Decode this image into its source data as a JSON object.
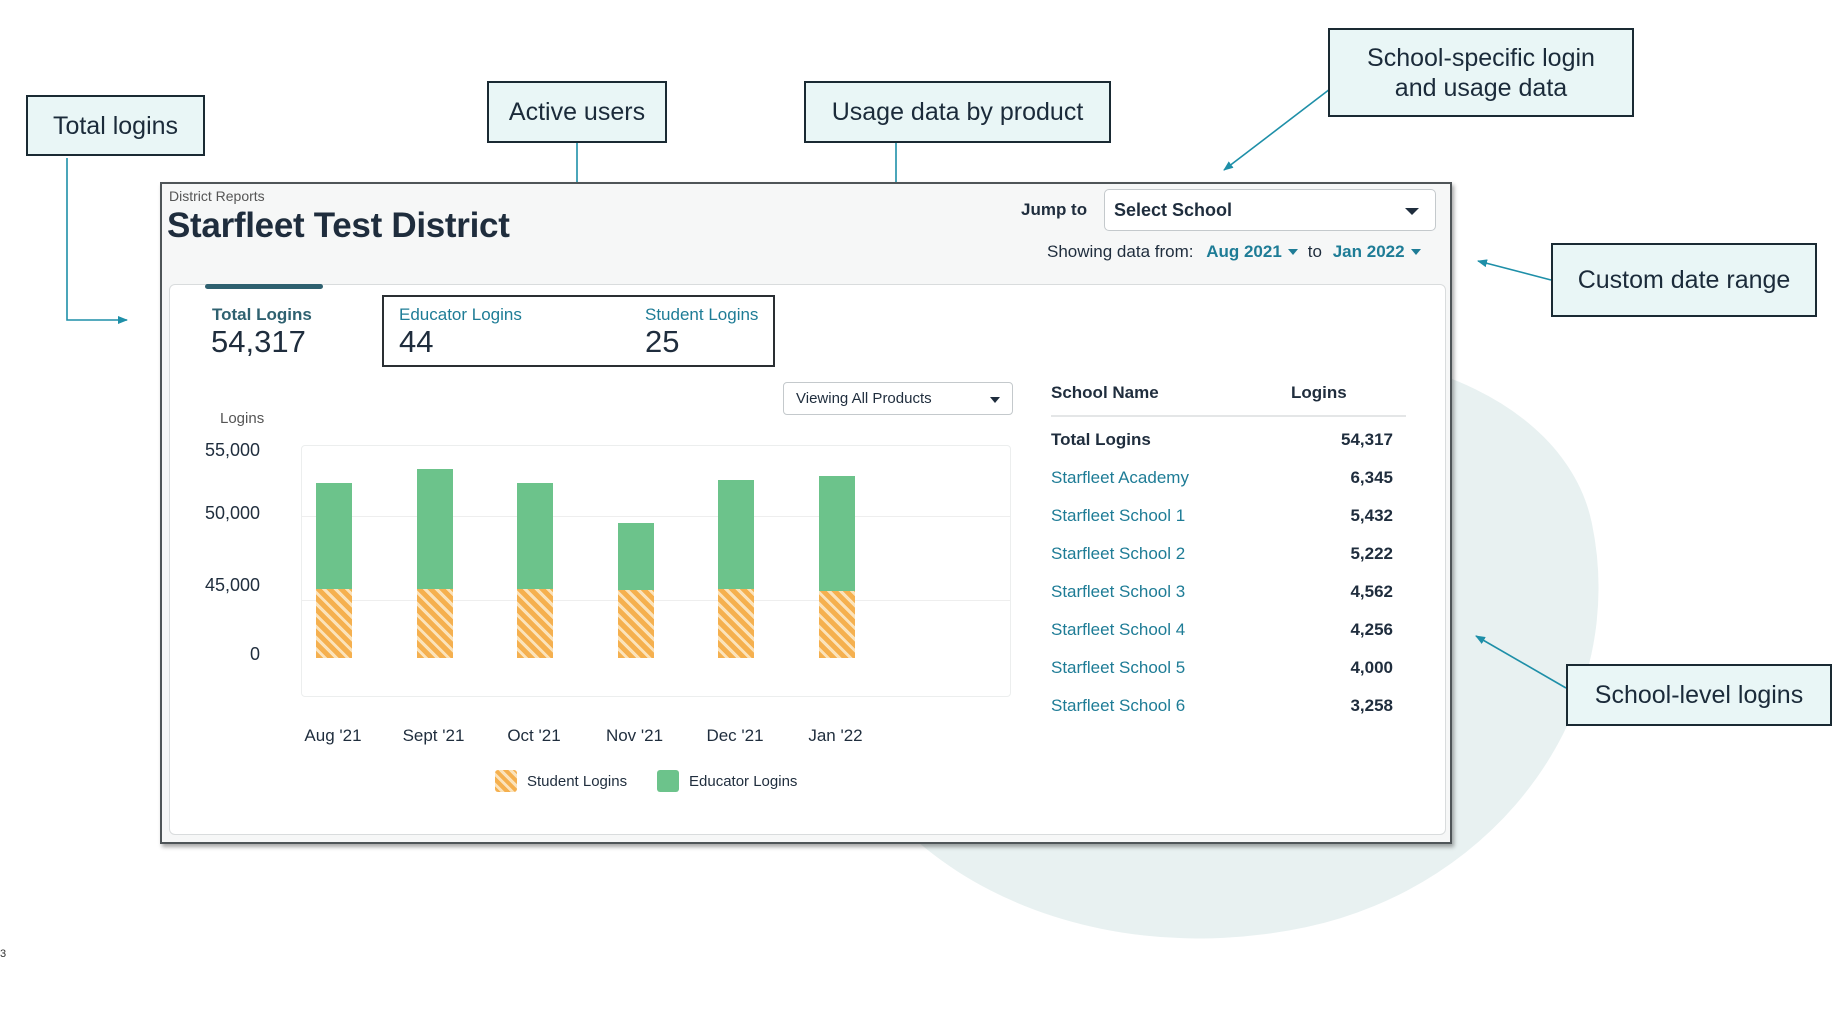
{
  "callouts": {
    "total_logins": "Total logins",
    "active_users": "Active users",
    "usage_by_product": "Usage data by product",
    "school_specific_line1": "School-specific login",
    "school_specific_line2": "and usage data",
    "custom_date_range": "Custom date range",
    "school_level_logins": "School-level logins"
  },
  "header": {
    "breadcrumb": "District Reports",
    "title": "Starfleet Test District",
    "jump_to_label": "Jump to",
    "school_select_value": "Select School",
    "date_range": {
      "prefix": "Showing data from:",
      "from": "Aug 2021",
      "separator": "to",
      "to": "Jan 2022"
    }
  },
  "summary": {
    "total_logins_label": "Total Logins",
    "total_logins_value": "54,317",
    "educator_logins_label": "Educator Logins",
    "educator_logins_value": "44",
    "student_logins_label": "Student Logins",
    "student_logins_value": "25"
  },
  "product_filter": {
    "selected": "Viewing All Products"
  },
  "chart_data": {
    "type": "bar",
    "stacked": true,
    "ylabel": "Logins",
    "y_ticks": [
      "55,000",
      "50,000",
      "45,000",
      "0"
    ],
    "categories": [
      "Aug '21",
      "Sept '21",
      "Oct '21",
      "Nov '21",
      "Dec '21",
      "Jan '22"
    ],
    "series": [
      {
        "name": "Student Logins",
        "color": "#f5b04f",
        "pattern": "hatched",
        "values": [
          44100,
          44500,
          44100,
          43600,
          44200,
          42900
        ]
      },
      {
        "name": "Educator Logins",
        "color": "#6cc38b",
        "values": [
          8500,
          9200,
          8500,
          5900,
          8600,
          10200
        ]
      }
    ],
    "stack_totals": [
      52600,
      53700,
      52600,
      49500,
      52800,
      53100
    ],
    "legend": "bottom",
    "grid": true
  },
  "school_table": {
    "headers": {
      "name": "School Name",
      "logins": "Logins"
    },
    "total": {
      "name": "Total Logins",
      "logins": "54,317"
    },
    "rows": [
      {
        "name": "Starfleet Academy",
        "logins": "6,345"
      },
      {
        "name": "Starfleet School 1",
        "logins": "5,432"
      },
      {
        "name": "Starfleet School 2",
        "logins": "5,222"
      },
      {
        "name": "Starfleet School 3",
        "logins": "4,562"
      },
      {
        "name": "Starfleet School 4",
        "logins": "4,256"
      },
      {
        "name": "Starfleet School 5",
        "logins": "4,000"
      },
      {
        "name": "Starfleet School 6",
        "logins": "3,258"
      }
    ]
  },
  "footnote": "3"
}
